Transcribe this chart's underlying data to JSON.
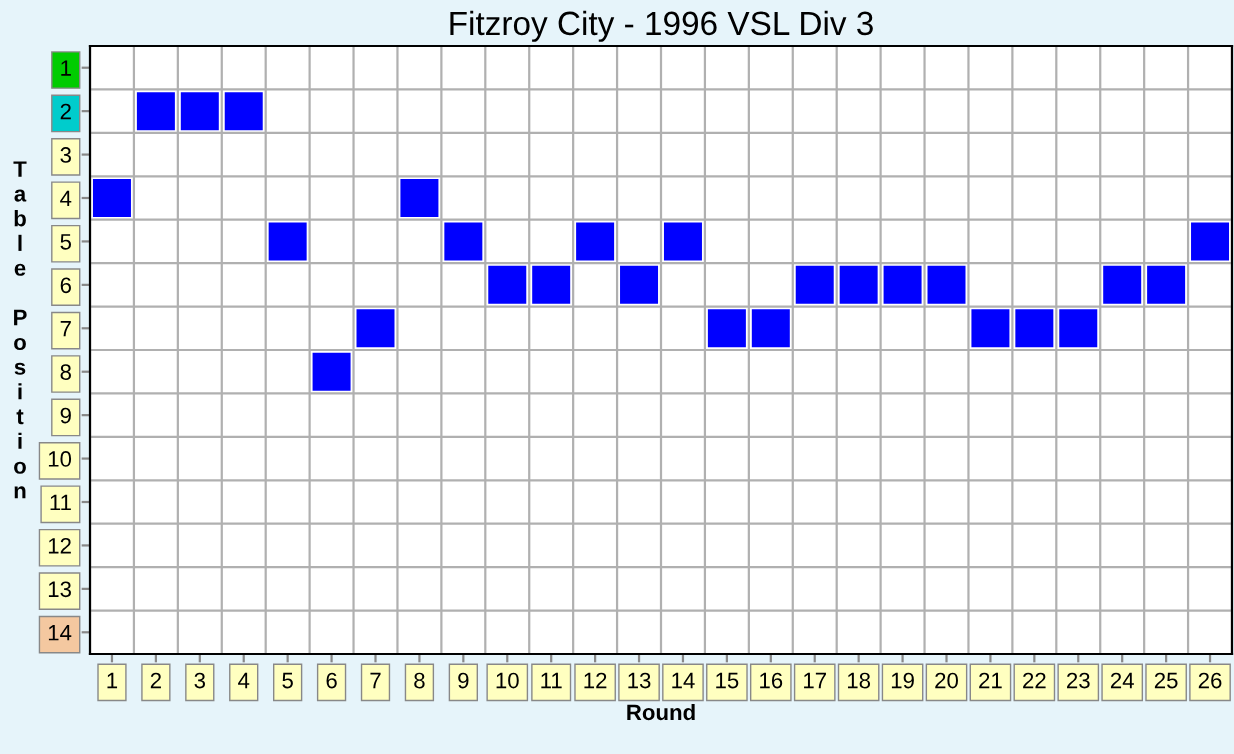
{
  "chart_data": {
    "type": "scatter",
    "title": "Fitzroy City - 1996 VSL Div 3",
    "xlabel": "Round",
    "ylabel": "Table Position",
    "categories": [
      "1",
      "2",
      "3",
      "4",
      "5",
      "6",
      "7",
      "8",
      "9",
      "10",
      "11",
      "12",
      "13",
      "14",
      "15",
      "16",
      "17",
      "18",
      "19",
      "20",
      "21",
      "22",
      "23",
      "24",
      "25",
      "26"
    ],
    "series": [
      {
        "color": "#0000ff",
        "values": [
          4,
          2,
          2,
          2,
          5,
          8,
          7,
          4,
          5,
          6,
          6,
          5,
          6,
          5,
          7,
          7,
          6,
          6,
          6,
          6,
          7,
          7,
          7,
          6,
          6,
          5
        ]
      }
    ],
    "ylim": [
      14.5,
      0.5
    ],
    "yticks": [
      1,
      2,
      3,
      4,
      5,
      6,
      7,
      8,
      9,
      10,
      11,
      12,
      13,
      14
    ],
    "marker": "square",
    "grid": true,
    "legend": false
  }
}
